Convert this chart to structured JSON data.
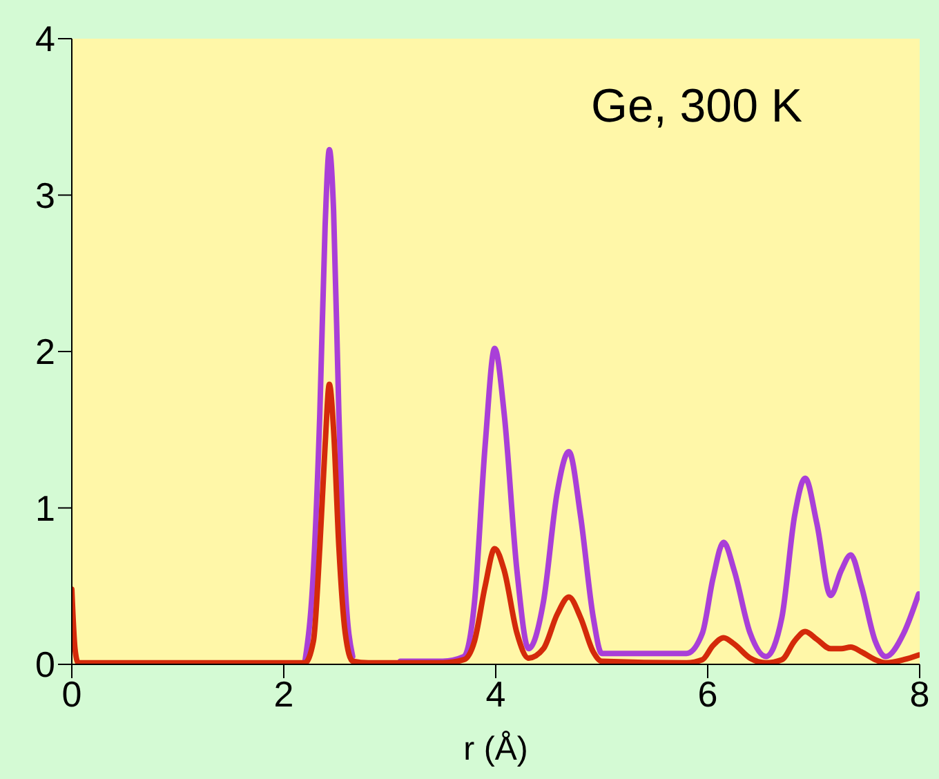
{
  "chart_data": {
    "type": "line",
    "xlabel": "r (Å)",
    "annotations": [
      "Ge, 300 K"
    ],
    "x": [
      0,
      0.03,
      0.06,
      1.0,
      2.0,
      2.2,
      2.28,
      2.34,
      2.39,
      2.43,
      2.47,
      2.52,
      2.58,
      2.65,
      2.8,
      3.1,
      3.5,
      3.7,
      3.8,
      3.9,
      3.99,
      4.08,
      4.2,
      4.31,
      4.45,
      4.58,
      4.69,
      4.8,
      4.92,
      5.0,
      5.8,
      5.95,
      6.05,
      6.15,
      6.25,
      6.4,
      6.55,
      6.7,
      6.82,
      6.92,
      7.03,
      7.16,
      7.26,
      7.35,
      7.45,
      7.58,
      7.68,
      7.85,
      7.99
    ],
    "series": [
      {
        "color": "#a93fd8",
        "values": [
          null,
          null,
          null,
          null,
          null,
          0.02,
          0.6,
          1.6,
          2.8,
          3.29,
          2.9,
          1.6,
          0.5,
          0.05,
          null,
          0.02,
          0.02,
          0.05,
          0.4,
          1.4,
          2.02,
          1.6,
          0.6,
          0.1,
          0.4,
          1.1,
          1.36,
          0.95,
          0.3,
          0.07,
          0.07,
          0.2,
          0.55,
          0.78,
          0.6,
          0.2,
          0.05,
          0.3,
          0.95,
          1.19,
          0.9,
          0.44,
          0.6,
          0.7,
          0.5,
          0.15,
          0.05,
          0.2,
          0.45
        ]
      },
      {
        "color": "#d42a0a",
        "values": [
          0.48,
          0.1,
          0.01,
          0.01,
          0.01,
          0.01,
          0.15,
          0.75,
          1.4,
          1.79,
          1.5,
          0.75,
          0.2,
          0.02,
          0.01,
          0.01,
          0.01,
          0.03,
          0.15,
          0.5,
          0.74,
          0.6,
          0.2,
          0.04,
          0.1,
          0.32,
          0.43,
          0.3,
          0.08,
          0.02,
          0.01,
          0.03,
          0.12,
          0.17,
          0.13,
          0.04,
          0.01,
          0.03,
          0.15,
          0.21,
          0.16,
          0.1,
          0.1,
          0.11,
          0.08,
          0.03,
          0.01,
          0.03,
          0.06
        ]
      }
    ],
    "xlim": [
      0,
      8
    ],
    "xticks": [
      0,
      2,
      4,
      6,
      8
    ],
    "ylim": [
      0,
      4
    ],
    "yticks": [
      0,
      1,
      2,
      3,
      4
    ],
    "grid": false,
    "legend": false,
    "marker": "none",
    "line_style": "solid"
  }
}
